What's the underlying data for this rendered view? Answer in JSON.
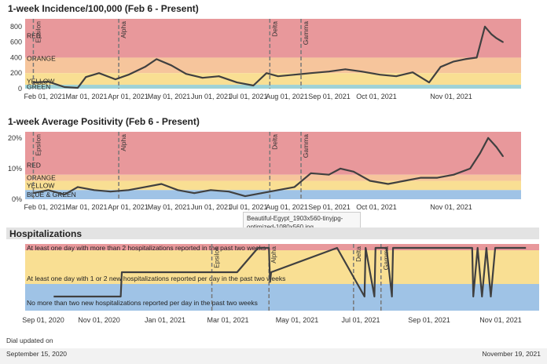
{
  "chart1": {
    "title": "1-week Incidence/100,000 (Feb 6 - Present)",
    "band_labels": {
      "red": "RED",
      "orange": "ORANGE",
      "yellow": "YELLOW",
      "green": "GREEN"
    },
    "colors": {
      "red": "#e8989b",
      "orange": "#f6c59c",
      "yellow": "#f9df93",
      "green": "#9ed2d6",
      "line": "#404040"
    }
  },
  "chart2": {
    "title": "1-week Average Positivity (Feb 6 - Present)",
    "band_labels": {
      "red": "RED",
      "orange": "ORANGE",
      "yellow": "YELLOW",
      "bluegreen": "BLUE & GREEN"
    },
    "colors": {
      "red": "#e8989b",
      "orange": "#f6c59c",
      "yellow": "#f9df93",
      "blue": "#9fc3e6",
      "line": "#404040"
    }
  },
  "chart3": {
    "title": "Hospitalizations",
    "band_labels": {
      "top": "At least one day with more than 2 hospitalizations reported in the past two weeks",
      "mid": "At least one day with 1 or 2 new hospitalizations reported per day in the past two weeks",
      "low": "No more than two new hospitalizations reported per day in the past two weeks"
    },
    "colors": {
      "red": "#e8989b",
      "yellow": "#f9df93",
      "blue": "#9fc3e6",
      "line": "#404040"
    }
  },
  "tooltip": "Beautiful-Egypt_1903x560-tinyjpg-optimized-1080x560.jpg",
  "footer": {
    "dial_updated": "Dial updated on",
    "start_date": "September 15, 2020",
    "end_date": "November 19, 2021"
  },
  "chart_data": [
    {
      "type": "line",
      "title": "1-week Incidence/100,000 (Feb 6 - Present)",
      "x_ticks": [
        "Feb 01, 2021",
        "Mar 01, 2021",
        "Apr 01, 2021",
        "May 01, 2021",
        "Jun 01, 2021",
        "Jul 01, 2021",
        "Aug 01, 2021",
        "Sep 01, 2021",
        "Oct 01, 2021",
        "Nov 01, 2021"
      ],
      "y_ticks": [
        "0",
        "200",
        "400",
        "600",
        "800"
      ],
      "ylim": [
        0,
        900
      ],
      "thresholds": {
        "green_max": 50,
        "yellow_max": 200,
        "orange_max": 400,
        "red_max": 900
      },
      "variant_markers": [
        {
          "label": "Epsilon",
          "date": "2021-02-06"
        },
        {
          "label": "Alpha",
          "date": "2021-03-30"
        },
        {
          "label": "Delta",
          "date": "2021-06-30"
        },
        {
          "label": "Gamma",
          "date": "2021-07-19"
        }
      ],
      "x": [
        "2021-02-06",
        "2021-02-15",
        "2021-02-25",
        "2021-03-05",
        "2021-03-10",
        "2021-03-18",
        "2021-03-28",
        "2021-04-05",
        "2021-04-15",
        "2021-04-22",
        "2021-05-01",
        "2021-05-10",
        "2021-05-20",
        "2021-05-30",
        "2021-06-10",
        "2021-06-20",
        "2021-06-28",
        "2021-07-05",
        "2021-07-15",
        "2021-07-25",
        "2021-08-05",
        "2021-08-15",
        "2021-08-25",
        "2021-09-05",
        "2021-09-15",
        "2021-09-25",
        "2021-10-05",
        "2021-10-12",
        "2021-10-20",
        "2021-10-27",
        "2021-11-03",
        "2021-11-08",
        "2021-11-12",
        "2021-11-15",
        "2021-11-19"
      ],
      "series": [
        {
          "values": [
            80,
            90,
            20,
            10,
            150,
            200,
            120,
            180,
            280,
            380,
            300,
            190,
            140,
            160,
            80,
            40,
            200,
            160,
            180,
            200,
            220,
            250,
            220,
            180,
            160,
            210,
            80,
            280,
            350,
            380,
            400,
            800,
            700,
            650,
            600
          ]
        }
      ]
    },
    {
      "type": "line",
      "title": "1-week Average Positivity (Feb 6 - Present)",
      "x_ticks": [
        "Feb 01, 2021",
        "Mar 01, 2021",
        "Apr 01, 2021",
        "May 01, 2021",
        "Jun 01, 2021",
        "Jul 01, 2021",
        "Aug 01, 2021",
        "Sep 01, 2021",
        "Oct 01, 2021",
        "Nov 01, 2021"
      ],
      "y_ticks": [
        "0%",
        "10%",
        "20%"
      ],
      "ylim": [
        0,
        22
      ],
      "thresholds": {
        "blue_green_max": 3,
        "yellow_max": 6,
        "orange_max": 8,
        "red_max": 22
      },
      "variant_markers": [
        {
          "label": "Epsilon",
          "date": "2021-02-06"
        },
        {
          "label": "Alpha",
          "date": "2021-03-30"
        },
        {
          "label": "Delta",
          "date": "2021-06-30"
        },
        {
          "label": "Gamma",
          "date": "2021-07-19"
        }
      ],
      "x": [
        "2021-02-06",
        "2021-02-15",
        "2021-02-25",
        "2021-03-05",
        "2021-03-15",
        "2021-03-25",
        "2021-04-05",
        "2021-04-15",
        "2021-04-25",
        "2021-05-05",
        "2021-05-15",
        "2021-05-25",
        "2021-06-05",
        "2021-06-15",
        "2021-06-25",
        "2021-07-05",
        "2021-07-15",
        "2021-07-25",
        "2021-08-05",
        "2021-08-12",
        "2021-08-20",
        "2021-08-30",
        "2021-09-10",
        "2021-09-20",
        "2021-09-30",
        "2021-10-10",
        "2021-10-20",
        "2021-10-30",
        "2021-11-05",
        "2021-11-10",
        "2021-11-15",
        "2021-11-19"
      ],
      "series": [
        {
          "values": [
            2,
            3,
            1.5,
            4,
            3,
            2.5,
            3,
            4,
            5,
            3,
            2,
            3,
            2.5,
            1,
            2,
            3,
            4,
            8.5,
            8,
            10,
            9,
            6,
            5,
            6,
            7,
            7,
            8,
            10,
            15,
            20,
            17,
            14
          ]
        }
      ]
    },
    {
      "type": "line",
      "title": "Hospitalizations",
      "x_ticks": [
        "Sep 01, 2020",
        "Nov 01, 2020",
        "Jan 01, 2021",
        "Mar 01, 2021",
        "May 01, 2021",
        "Jul 01, 2021",
        "Sep 01, 2021",
        "Nov 01, 2021"
      ],
      "levels": [
        "low",
        "mid",
        "top"
      ],
      "variant_markers": [
        {
          "label": "Epsilon",
          "date": "2021-02-06"
        },
        {
          "label": "Alpha",
          "date": "2021-03-30"
        },
        {
          "label": "Delta",
          "date": "2021-06-15"
        },
        {
          "label": "Gamma",
          "date": "2021-07-10"
        }
      ],
      "x": [
        "2020-09-15",
        "2020-11-15",
        "2020-11-16",
        "2021-03-01",
        "2021-03-20",
        "2021-03-30",
        "2021-03-31",
        "2021-04-01",
        "2021-05-31",
        "2021-06-25",
        "2021-06-26",
        "2021-07-04",
        "2021-07-05",
        "2021-07-15",
        "2021-07-20",
        "2021-07-21",
        "2021-10-01",
        "2021-10-02",
        "2021-10-06",
        "2021-10-10",
        "2021-10-14",
        "2021-10-18",
        "2021-10-22",
        "2021-10-26",
        "2021-11-19"
      ],
      "series": [
        {
          "values": [
            0,
            0,
            1,
            1,
            2,
            2,
            0.6,
            1,
            2,
            0,
            2,
            0,
            2,
            2,
            0,
            2,
            2,
            0,
            2,
            0,
            2,
            0,
            2,
            2,
            2
          ]
        }
      ]
    }
  ]
}
